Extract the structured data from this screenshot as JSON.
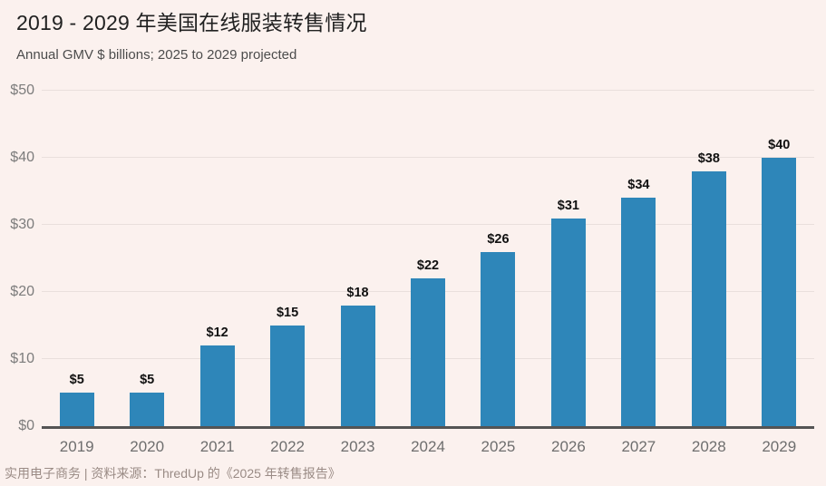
{
  "header": {
    "title": "2019 - 2029 年美国在线服装转售情况",
    "subtitle": "Annual GMV $ billions; 2025 to 2029 projected"
  },
  "chart_data": {
    "type": "bar",
    "title": "2019 - 2029 年美国在线服装转售情况",
    "subtitle": "Annual GMV $ billions; 2025 to 2029 projected",
    "categories": [
      "2019",
      "2020",
      "2021",
      "2022",
      "2023",
      "2024",
      "2025",
      "2026",
      "2027",
      "2028",
      "2029"
    ],
    "values": [
      5,
      5,
      12,
      15,
      18,
      22,
      26,
      31,
      34,
      38,
      40
    ],
    "value_labels": [
      "$5",
      "$5",
      "$12",
      "$15",
      "$18",
      "$22",
      "$26",
      "$31",
      "$34",
      "$38",
      "$40"
    ],
    "xlabel": "",
    "ylabel": "Annual GMV $ billions",
    "ylim": [
      0,
      50
    ],
    "y_ticks": [
      {
        "value": 0,
        "label": "$0"
      },
      {
        "value": 10,
        "label": "$10"
      },
      {
        "value": 20,
        "label": "$20"
      },
      {
        "value": 30,
        "label": "$30"
      },
      {
        "value": 40,
        "label": "$40"
      },
      {
        "value": 50,
        "label": "$50"
      }
    ],
    "grid": true,
    "legend": "none",
    "bar_color": "#2e86b9"
  },
  "footer": {
    "text": "实用电子商务 | 资料来源：ThredUp 的《2025 年转售报告》"
  },
  "colors": {
    "background": "#fbf1ee",
    "bar": "#2e86b9",
    "axis_line": "#545454",
    "gridline": "#e9dfdc",
    "title_text": "#212121",
    "subtitle_text": "#4c4c4c",
    "tick_text": "#6e6e6e",
    "value_text": "#111111",
    "footer_text": "#9a8b85"
  }
}
